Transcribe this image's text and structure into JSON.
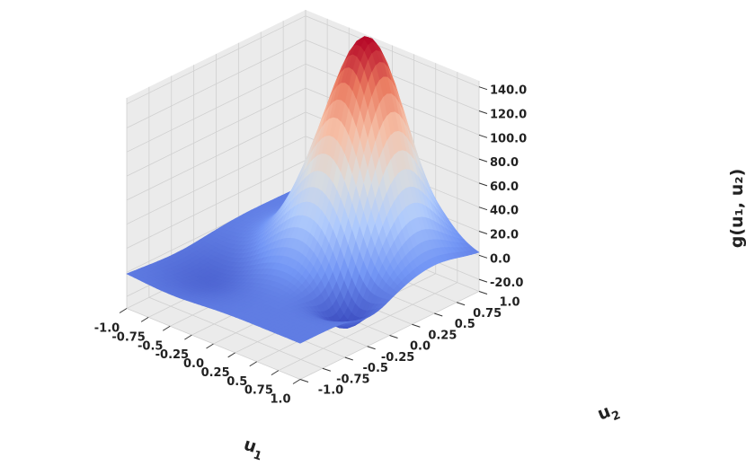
{
  "chart_data": {
    "type": "surface3d",
    "title": "",
    "xlabel": "u",
    "xlabel_sub": "1",
    "ylabel": "u",
    "ylabel_sub": "2",
    "zlabel": "g(u₁, u₂)",
    "x_ticks": [
      "-1.0",
      "-0.75",
      "-0.5",
      "-0.25",
      "0.0",
      "0.25",
      "0.5",
      "0.75",
      "1.0"
    ],
    "y_ticks": [
      "-1.0",
      "-0.75",
      "-0.5",
      "-0.25",
      "0.0",
      "0.25",
      "0.5",
      "0.75",
      "1.0"
    ],
    "z_ticks": [
      "-20.0",
      "0.0",
      "20.0",
      "40.0",
      "60.0",
      "80.0",
      "100.0",
      "120.0",
      "140.0"
    ],
    "xlim": [
      -1.0,
      1.0
    ],
    "ylim": [
      -1.0,
      1.0
    ],
    "zlim": [
      -30,
      145
    ],
    "colormap": "coolwarm",
    "colormap_stops": [
      "#3b4cc0",
      "#7396f5",
      "#b0cbfc",
      "#dcdddd",
      "#f6bfa6",
      "#ea7b60",
      "#b40426"
    ],
    "grid": true,
    "pane_color": "#ebebeb",
    "grid_color": "#d0d0d0",
    "surface_components": [
      {
        "kind": "gaussian_peak",
        "center": [
          0.3,
          0.5
        ],
        "height": 140,
        "spread": 0.3
      },
      {
        "kind": "gaussian_peak",
        "center": [
          0.0,
          0.3
        ],
        "height": 60,
        "spread": 0.35
      },
      {
        "kind": "gaussian_trough",
        "center": [
          0.7,
          -0.2
        ],
        "height": -28,
        "spread": 0.18
      },
      {
        "kind": "gaussian_trough",
        "center": [
          -0.5,
          -0.45
        ],
        "height": -12,
        "spread": 0.35
      }
    ]
  }
}
